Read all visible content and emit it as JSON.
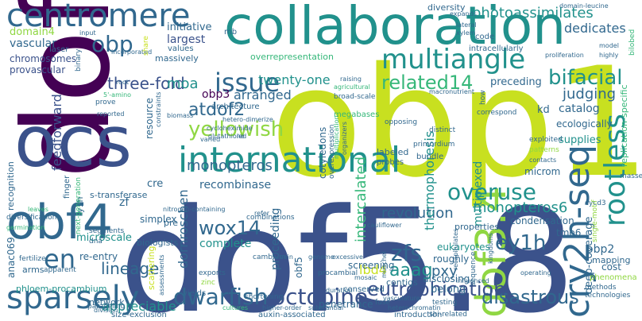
{
  "palette": {
    "dark_purple": "#440154",
    "indigo": "#3b528b",
    "blue": "#31688e",
    "teal": "#21918c",
    "green": "#35b779",
    "lime": "#90d743",
    "yellow": "#c8e020"
  },
  "words": [
    {
      "text": "obp1"
    },
    {
      "text": "dof5.8"
    },
    {
      "text": "dof"
    },
    {
      "text": "collaboration"
    },
    {
      "text": "ocs"
    },
    {
      "text": "centromere"
    },
    {
      "text": "obf4"
    },
    {
      "text": "international"
    },
    {
      "text": "cry2h-seq"
    },
    {
      "text": "dof3.4"
    },
    {
      "text": "issue"
    },
    {
      "text": "sparsely"
    },
    {
      "text": "multiangle"
    },
    {
      "text": "rootless"
    },
    {
      "text": "yellowish"
    },
    {
      "text": "dwarfish"
    },
    {
      "text": "octopine"
    },
    {
      "text": "overuse"
    },
    {
      "text": "disastrous"
    },
    {
      "text": "en"
    },
    {
      "text": "zfs"
    },
    {
      "text": "bifacial"
    },
    {
      "text": "atdof2"
    },
    {
      "text": "wox14"
    },
    {
      "text": "eutrophication"
    },
    {
      "text": "obp"
    },
    {
      "text": "ey1h"
    },
    {
      "text": "related14"
    },
    {
      "text": "monopteros6"
    },
    {
      "text": "lineage"
    },
    {
      "text": "three-fold"
    },
    {
      "text": "moa"
    },
    {
      "text": "aaag"
    },
    {
      "text": "intercalated"
    },
    {
      "text": "judging"
    },
    {
      "text": "pxy"
    },
    {
      "text": "monopteros"
    },
    {
      "text": "photoassimilates"
    },
    {
      "text": "dedicates"
    },
    {
      "text": "revolution"
    },
    {
      "text": "arranged"
    },
    {
      "text": "feedforward"
    },
    {
      "text": "dornroschen"
    },
    {
      "text": "lbd4"
    },
    {
      "text": "thermophoresis"
    },
    {
      "text": "proceeding"
    },
    {
      "text": "appreciable"
    },
    {
      "text": "deep-coverage"
    },
    {
      "text": "obp3"
    },
    {
      "text": "twenty-one"
    },
    {
      "text": "recombinase"
    },
    {
      "text": "vascular"
    },
    {
      "text": "largest"
    },
    {
      "text": "multiplexed"
    },
    {
      "text": "catalog"
    },
    {
      "text": "initiative"
    },
    {
      "text": "complete"
    },
    {
      "text": "domain4"
    },
    {
      "text": "chromosomes"
    },
    {
      "text": "provascular"
    },
    {
      "text": "microscale"
    },
    {
      "text": "anac069"
    },
    {
      "text": "simplex"
    },
    {
      "text": "re-entry"
    },
    {
      "text": "obp2"
    },
    {
      "text": "tmo6"
    },
    {
      "text": "roughly"
    },
    {
      "text": "supplies"
    },
    {
      "text": "ecologically"
    },
    {
      "text": "eukaryotes"
    },
    {
      "text": "disclosing"
    },
    {
      "text": "lineage"
    },
    {
      "text": "zf"
    },
    {
      "text": "cre"
    },
    {
      "text": "s-transferase"
    },
    {
      "text": "condensation"
    },
    {
      "text": "overrepresentation"
    },
    {
      "text": "massively"
    },
    {
      "text": "architecture"
    },
    {
      "text": "resource"
    },
    {
      "text": "preceding"
    },
    {
      "text": "microm"
    },
    {
      "text": "kd"
    },
    {
      "text": "cost"
    },
    {
      "text": "mapping"
    },
    {
      "text": "values"
    },
    {
      "text": "diversity"
    },
    {
      "text": "code"
    },
    {
      "text": "laser"
    },
    {
      "text": "mb"
    },
    {
      "text": "intracellularly"
    },
    {
      "text": "properties"
    },
    {
      "text": "screening"
    },
    {
      "text": "obf5"
    },
    {
      "text": "pre"
    },
    {
      "text": "belong"
    },
    {
      "text": "contigs"
    },
    {
      "text": "penetrance"
    },
    {
      "text": "scattering"
    },
    {
      "text": "biologists"
    },
    {
      "text": "phloem-procambium"
    },
    {
      "text": "network"
    },
    {
      "text": "size-exclusion"
    },
    {
      "text": "yields"
    },
    {
      "text": "auxin-associated"
    },
    {
      "text": "introduction"
    },
    {
      "text": "conserved"
    },
    {
      "text": "fuse"
    },
    {
      "text": "testing"
    },
    {
      "text": "shi-related"
    },
    {
      "text": "phenomena"
    },
    {
      "text": "technologies"
    },
    {
      "text": "methods"
    },
    {
      "text": "cotyledons"
    },
    {
      "text": "overexpression"
    },
    {
      "text": "labeled"
    },
    {
      "text": "probes"
    },
    {
      "text": "bundle"
    },
    {
      "text": "primordium"
    },
    {
      "text": "opposing"
    },
    {
      "text": "distinct"
    },
    {
      "text": "correspond"
    },
    {
      "text": "exploited"
    },
    {
      "text": "patterns"
    },
    {
      "text": "contacts"
    },
    {
      "text": "replication-specific"
    },
    {
      "text": "bilobed"
    },
    {
      "text": "masse"
    },
    {
      "text": "cycd3"
    },
    {
      "text": "single-motif"
    },
    {
      "text": "recognition"
    },
    {
      "text": "y1h"
    },
    {
      "text": "finger"
    },
    {
      "text": "next-generation"
    },
    {
      "text": "diversification"
    },
    {
      "text": "germination"
    },
    {
      "text": "leaves"
    },
    {
      "text": "segments"
    },
    {
      "text": "dna"
    },
    {
      "text": "fertilizer"
    },
    {
      "text": "arms"
    },
    {
      "text": "apparent"
    },
    {
      "text": "division"
    },
    {
      "text": "paralleling"
    },
    {
      "text": "higher-order"
    },
    {
      "text": "cultures"
    },
    {
      "text": "duration"
    },
    {
      "text": "shortening"
    },
    {
      "text": "heterochromatin"
    },
    {
      "text": "substantial"
    },
    {
      "text": "mosaic"
    },
    {
      "text": "procambial"
    },
    {
      "text": "excessive"
    },
    {
      "text": "vein"
    },
    {
      "text": "exports"
    },
    {
      "text": "zinc"
    },
    {
      "text": "assessments"
    },
    {
      "text": "cambium"
    },
    {
      "text": "genome"
    },
    {
      "text": "combinations"
    },
    {
      "text": "nitrogen-containing"
    },
    {
      "text": "refer"
    },
    {
      "text": "cauliflower"
    },
    {
      "text": "vasculature"
    },
    {
      "text": "sequence"
    },
    {
      "text": "recapitulates"
    },
    {
      "text": "kingdoms"
    },
    {
      "text": "influenced"
    },
    {
      "text": "operating"
    },
    {
      "text": "muschel"
    },
    {
      "text": "glutathione"
    },
    {
      "text": "led"
    },
    {
      "text": "cycloheximide"
    },
    {
      "text": "hetero-dimerize"
    },
    {
      "text": "constraints"
    },
    {
      "text": "biomass"
    },
    {
      "text": "prove"
    },
    {
      "text": "reported"
    },
    {
      "text": "root"
    },
    {
      "text": "5'-amino"
    },
    {
      "text": "incorporated"
    },
    {
      "text": "binary"
    },
    {
      "text": "input"
    },
    {
      "text": "share"
    },
    {
      "text": "megabases"
    },
    {
      "text": "broad-scale"
    },
    {
      "text": "agricultural"
    },
    {
      "text": "raising"
    },
    {
      "text": "lateral"
    },
    {
      "text": "xylem"
    },
    {
      "text": "expands"
    },
    {
      "text": "domain-leucine"
    },
    {
      "text": "model"
    },
    {
      "text": "highly"
    },
    {
      "text": "proliferation"
    },
    {
      "text": "macronutrient"
    },
    {
      "text": "how"
    },
    {
      "text": "varied"
    },
    {
      "text": "multiplication"
    },
    {
      "text": "organizers"
    }
  ]
}
